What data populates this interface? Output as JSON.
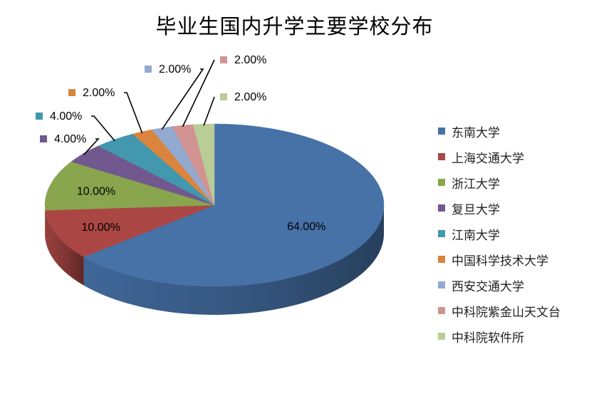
{
  "chart_data": {
    "type": "pie",
    "title": "毕业生国内升学主要学校分布",
    "slices": [
      {
        "label": "东南大学",
        "value": 64.0,
        "display": "64.00%",
        "color": "#4672A8"
      },
      {
        "label": "上海交通大学",
        "value": 10.0,
        "display": "10.00%",
        "color": "#AA4744"
      },
      {
        "label": "浙江大学",
        "value": 10.0,
        "display": "10.00%",
        "color": "#89A54E"
      },
      {
        "label": "复旦大学",
        "value": 4.0,
        "display": "4.00%",
        "color": "#71588F"
      },
      {
        "label": "江南大学",
        "value": 4.0,
        "display": "4.00%",
        "color": "#4198AF"
      },
      {
        "label": "中国科学技术大学",
        "value": 2.0,
        "display": "2.00%",
        "color": "#DB843D"
      },
      {
        "label": "西安交通大学",
        "value": 2.0,
        "display": "2.00%",
        "color": "#93A9CF"
      },
      {
        "label": "中科院紫金山天文台",
        "value": 2.0,
        "display": "2.00%",
        "color": "#D19392"
      },
      {
        "label": "中科院软件所",
        "value": 2.0,
        "display": "2.00%",
        "color": "#B9CD96"
      }
    ],
    "legend_position": "right"
  }
}
